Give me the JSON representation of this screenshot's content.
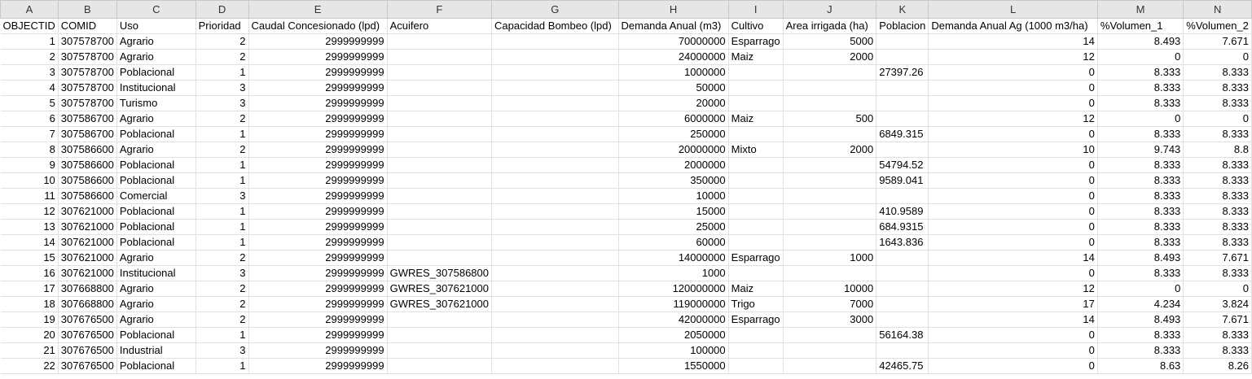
{
  "columns": [
    {
      "letter": "A",
      "align": "num"
    },
    {
      "letter": "B",
      "align": "txt"
    },
    {
      "letter": "C",
      "align": "txt"
    },
    {
      "letter": "D",
      "align": "num"
    },
    {
      "letter": "E",
      "align": "num"
    },
    {
      "letter": "F",
      "align": "txt"
    },
    {
      "letter": "G",
      "align": "txt"
    },
    {
      "letter": "H",
      "align": "num"
    },
    {
      "letter": "I",
      "align": "txt"
    },
    {
      "letter": "J",
      "align": "num"
    },
    {
      "letter": "K",
      "align": "txt"
    },
    {
      "letter": "L",
      "align": "num"
    },
    {
      "letter": "M",
      "align": "num"
    },
    {
      "letter": "N",
      "align": "num"
    }
  ],
  "headers": [
    "OBJECTID",
    "COMID",
    "Uso",
    "Prioridad",
    "Caudal Concesionado (lpd)",
    "Acuifero",
    "Capacidad Bombeo (lpd)",
    "Demanda Anual (m3)",
    "Cultivo",
    "Area irrigada (ha)",
    "Poblacion",
    "Demanda Anual Ag (1000 m3/ha)",
    "%Volumen_1",
    "%Volumen_2"
  ],
  "rows": [
    [
      "1",
      "307578700",
      "Agrario",
      "2",
      "2999999999",
      "",
      "",
      "70000000",
      "Esparrago",
      "5000",
      "",
      "14",
      "8.493",
      "7.671"
    ],
    [
      "2",
      "307578700",
      "Agrario",
      "2",
      "2999999999",
      "",
      "",
      "24000000",
      "Maiz",
      "2000",
      "",
      "12",
      "0",
      "0"
    ],
    [
      "3",
      "307578700",
      "Poblacional",
      "1",
      "2999999999",
      "",
      "",
      "1000000",
      "",
      "",
      "27397.26",
      "0",
      "8.333",
      "8.333"
    ],
    [
      "4",
      "307578700",
      "Institucional",
      "3",
      "2999999999",
      "",
      "",
      "50000",
      "",
      "",
      "",
      "0",
      "8.333",
      "8.333"
    ],
    [
      "5",
      "307578700",
      "Turismo",
      "3",
      "2999999999",
      "",
      "",
      "20000",
      "",
      "",
      "",
      "0",
      "8.333",
      "8.333"
    ],
    [
      "6",
      "307586700",
      "Agrario",
      "2",
      "2999999999",
      "",
      "",
      "6000000",
      "Maiz",
      "500",
      "",
      "12",
      "0",
      "0"
    ],
    [
      "7",
      "307586700",
      "Poblacional",
      "1",
      "2999999999",
      "",
      "",
      "250000",
      "",
      "",
      "6849.315",
      "0",
      "8.333",
      "8.333"
    ],
    [
      "8",
      "307586600",
      "Agrario",
      "2",
      "2999999999",
      "",
      "",
      "20000000",
      "Mixto",
      "2000",
      "",
      "10",
      "9.743",
      "8.8"
    ],
    [
      "9",
      "307586600",
      "Poblacional",
      "1",
      "2999999999",
      "",
      "",
      "2000000",
      "",
      "",
      "54794.52",
      "0",
      "8.333",
      "8.333"
    ],
    [
      "10",
      "307586600",
      "Poblacional",
      "1",
      "2999999999",
      "",
      "",
      "350000",
      "",
      "",
      "9589.041",
      "0",
      "8.333",
      "8.333"
    ],
    [
      "11",
      "307586600",
      "Comercial",
      "3",
      "2999999999",
      "",
      "",
      "10000",
      "",
      "",
      "",
      "0",
      "8.333",
      "8.333"
    ],
    [
      "12",
      "307621000",
      "Poblacional",
      "1",
      "2999999999",
      "",
      "",
      "15000",
      "",
      "",
      "410.9589",
      "0",
      "8.333",
      "8.333"
    ],
    [
      "13",
      "307621000",
      "Poblacional",
      "1",
      "2999999999",
      "",
      "",
      "25000",
      "",
      "",
      "684.9315",
      "0",
      "8.333",
      "8.333"
    ],
    [
      "14",
      "307621000",
      "Poblacional",
      "1",
      "2999999999",
      "",
      "",
      "60000",
      "",
      "",
      "1643.836",
      "0",
      "8.333",
      "8.333"
    ],
    [
      "15",
      "307621000",
      "Agrario",
      "2",
      "2999999999",
      "",
      "",
      "14000000",
      "Esparrago",
      "1000",
      "",
      "14",
      "8.493",
      "7.671"
    ],
    [
      "16",
      "307621000",
      "Institucional",
      "3",
      "2999999999",
      "GWRES_307586800",
      "",
      "1000",
      "",
      "",
      "",
      "0",
      "8.333",
      "8.333"
    ],
    [
      "17",
      "307668800",
      "Agrario",
      "2",
      "2999999999",
      "GWRES_307621000",
      "",
      "120000000",
      "Maiz",
      "10000",
      "",
      "12",
      "0",
      "0"
    ],
    [
      "18",
      "307668800",
      "Agrario",
      "2",
      "2999999999",
      "GWRES_307621000",
      "",
      "119000000",
      "Trigo",
      "7000",
      "",
      "17",
      "4.234",
      "3.824"
    ],
    [
      "19",
      "307676500",
      "Agrario",
      "2",
      "2999999999",
      "",
      "",
      "42000000",
      "Esparrago",
      "3000",
      "",
      "14",
      "8.493",
      "7.671"
    ],
    [
      "20",
      "307676500",
      "Poblacional",
      "1",
      "2999999999",
      "",
      "",
      "2050000",
      "",
      "",
      "56164.38",
      "0",
      "8.333",
      "8.333"
    ],
    [
      "21",
      "307676500",
      "Industrial",
      "3",
      "2999999999",
      "",
      "",
      "100000",
      "",
      "",
      "",
      "0",
      "8.333",
      "8.333"
    ],
    [
      "22",
      "307676500",
      "Poblacional",
      "1",
      "2999999999",
      "",
      "",
      "1550000",
      "",
      "",
      "42465.75",
      "0",
      "8.63",
      "8.26"
    ]
  ]
}
